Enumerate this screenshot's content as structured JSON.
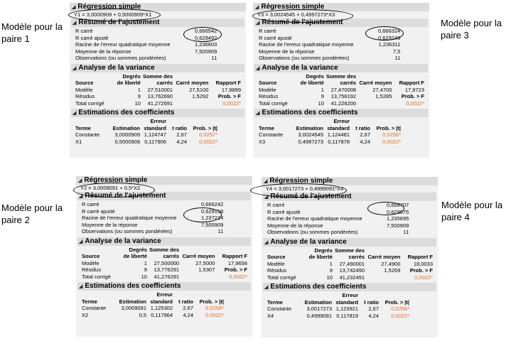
{
  "side_labels": {
    "p1": [
      "Modèle pour la",
      "paire 1"
    ],
    "p2": [
      "Modèle pour la",
      "paire 2"
    ],
    "p3": [
      "Modèle pour la",
      "paire 3"
    ],
    "p4": [
      "Modèle pour la",
      "paire 4"
    ]
  },
  "section_titles": {
    "main": "Régression simple",
    "fit": "Résumé de l'ajustement",
    "anova": "Analyse de la variance",
    "coef": "Estimations des coefficients"
  },
  "fit_labels": [
    "R carré",
    "R carré ajusté",
    "Racine de l'erreur quadratique moyenne",
    "Moyenne de la réponse",
    "Observations (ou sommes pondérées)"
  ],
  "anova_headers": {
    "row1": [
      "",
      "Degrés",
      "Somme des",
      "",
      ""
    ],
    "row2": [
      "Source",
      "de liberté",
      "carrés",
      "Carré moyen",
      "Rapport F"
    ]
  },
  "coef_headers": {
    "row1": [
      "",
      "",
      "Erreur",
      "",
      ""
    ],
    "row2": [
      "Terme",
      "Estimation",
      "standard",
      "t ratio",
      "Prob. > |t|"
    ]
  },
  "models": [
    {
      "equation": "Y1 = 3,0000909 + 0,5000909*X1",
      "fit": [
        "0,666542",
        "0,629492",
        "1,236603",
        "7,500909",
        "11"
      ],
      "anova": [
        [
          "Modèle",
          "1",
          "27,510001",
          "27,5100",
          "17,9899"
        ],
        [
          "Résidus",
          "9",
          "13,762690",
          "1,5292",
          "Prob. > F"
        ],
        [
          "Total corrigé",
          "10",
          "41,272691",
          "",
          "0,0022*"
        ]
      ],
      "coef": [
        [
          "Constante",
          "3,0000909",
          "1,124747",
          "2,67",
          "0,0257*"
        ],
        [
          "X1",
          "0,5000909",
          "0,117906",
          "4,24",
          "0,0022*"
        ]
      ]
    },
    {
      "equation": "Y2 = 3,0009091 + 0,5*X2",
      "fit": [
        "0,666242",
        "0,629158",
        "1,237214",
        "7,500909",
        "11"
      ],
      "anova": [
        [
          "Modèle",
          "1",
          "27,500000",
          "27,5000",
          "17,9656"
        ],
        [
          "Résidus",
          "9",
          "13,776291",
          "1,5307",
          "Prob. > F"
        ],
        [
          "Total corrigé",
          "10",
          "41,276291",
          "",
          "0,0022*"
        ]
      ],
      "coef": [
        [
          "Constante",
          "3,0009091",
          "1,125302",
          "2,67",
          "0,0258*"
        ],
        [
          "X2",
          "0,5",
          "0,117964",
          "4,24",
          "0,0022*"
        ]
      ]
    },
    {
      "equation": "Y3 = 3,0024545 + 0,4997273*X3",
      "fit": [
        "0,666324",
        "0,629249",
        "1,236311",
        "7,5",
        "11"
      ],
      "anova": [
        [
          "Modèle",
          "1",
          "27,470008",
          "27,4700",
          "17,9723"
        ],
        [
          "Résidus",
          "9",
          "13,756192",
          "1,5285",
          "Prob. > F"
        ],
        [
          "Total corrigé",
          "10",
          "41,226200",
          "",
          "0,0022*"
        ]
      ],
      "coef": [
        [
          "Constante",
          "3,0024545",
          "1,124481",
          "2,67",
          "0,0256*"
        ],
        [
          "X3",
          "0,4997273",
          "0,117878",
          "4,24",
          "0,0022*"
        ]
      ]
    },
    {
      "equation": "Y4 = 3,0017273 + 0,4999091*X4",
      "fit": [
        "0,666707",
        "0,629675",
        "1,235695",
        "7,500909",
        "11"
      ],
      "anova": [
        [
          "Modèle",
          "1",
          "27,490001",
          "27,4900",
          "18,0033"
        ],
        [
          "Résidus",
          "9",
          "13,742490",
          "1,5269",
          "Prob. > F"
        ],
        [
          "Total corrigé",
          "10",
          "41,232491",
          "",
          "0,0022*"
        ]
      ],
      "coef": [
        [
          "Constante",
          "3,0017273",
          "1,123921",
          "2,67",
          "0,0256*"
        ],
        [
          "X4",
          "0,4999091",
          "0,117819",
          "4,24",
          "0,0022*"
        ]
      ]
    }
  ]
}
